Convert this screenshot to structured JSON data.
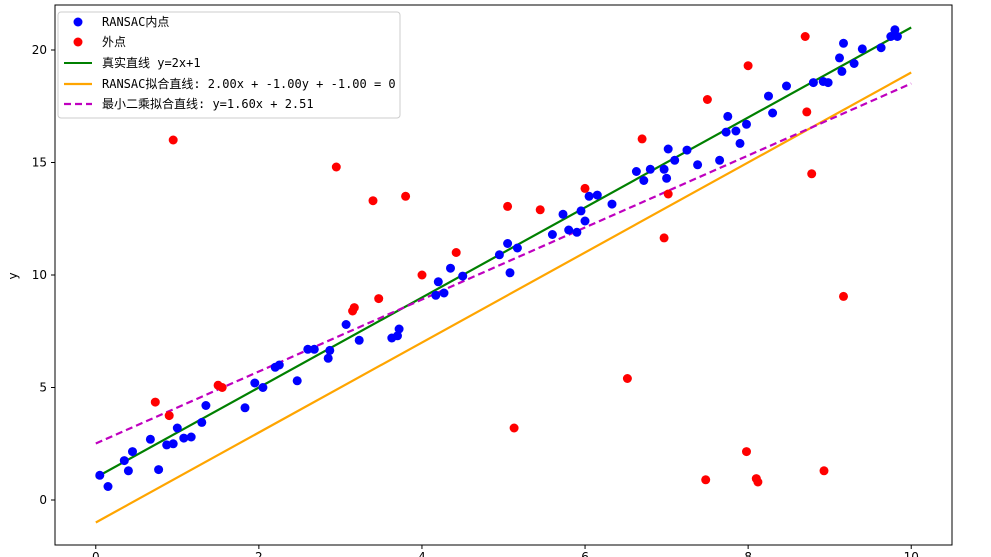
{
  "chart_data": {
    "type": "scatter",
    "title": "",
    "xlabel": "",
    "ylabel": "y",
    "xlim": [
      -0.5,
      10.5
    ],
    "ylim": [
      -2,
      22
    ],
    "xticks": [
      0,
      2,
      4,
      6,
      8,
      10
    ],
    "yticks": [
      0,
      5,
      10,
      15,
      20
    ],
    "grid": false,
    "legend_position": "top-left",
    "series": [
      {
        "name": "RANSAC内点",
        "kind": "scatter",
        "color": "#0000ff",
        "x": [
          0.05,
          0.15,
          0.35,
          0.4,
          0.45,
          0.67,
          0.77,
          0.87,
          0.95,
          1.0,
          1.08,
          1.17,
          1.3,
          1.35,
          1.83,
          1.95,
          2.05,
          2.2,
          2.25,
          2.47,
          2.6,
          2.68,
          2.85,
          2.87,
          3.07,
          3.23,
          3.63,
          3.7,
          3.72,
          4.17,
          4.2,
          4.27,
          4.35,
          4.5,
          4.95,
          5.05,
          5.08,
          5.17,
          5.6,
          5.73,
          5.8,
          5.9,
          5.95,
          6.0,
          6.05,
          6.15,
          6.33,
          6.63,
          6.72,
          6.8,
          6.97,
          7.0,
          7.02,
          7.1,
          7.25,
          7.38,
          7.65,
          7.73,
          7.75,
          7.85,
          7.9,
          7.98,
          8.25,
          8.3,
          8.47,
          8.8,
          8.92,
          8.98,
          9.12,
          9.15,
          9.17,
          9.3,
          9.4,
          9.63,
          9.75,
          9.8,
          9.83
        ],
        "y": [
          1.1,
          0.6,
          1.75,
          1.3,
          2.15,
          2.7,
          1.35,
          2.45,
          2.5,
          3.2,
          2.75,
          2.8,
          3.45,
          4.2,
          4.1,
          5.2,
          5.0,
          5.9,
          6.0,
          5.3,
          6.7,
          6.7,
          6.3,
          6.65,
          7.8,
          7.1,
          7.2,
          7.3,
          7.6,
          9.1,
          9.7,
          9.2,
          10.3,
          9.95,
          10.9,
          11.4,
          10.1,
          11.2,
          11.8,
          12.7,
          12.0,
          11.9,
          12.85,
          12.4,
          13.5,
          13.55,
          13.15,
          14.6,
          14.2,
          14.7,
          14.7,
          14.3,
          15.6,
          15.1,
          15.55,
          14.9,
          15.1,
          16.35,
          17.05,
          16.4,
          15.85,
          16.7,
          17.95,
          17.2,
          18.4,
          18.55,
          18.6,
          18.55,
          19.65,
          19.05,
          20.3,
          19.4,
          20.05,
          20.1,
          20.6,
          20.9,
          20.6
        ]
      },
      {
        "name": "外点",
        "kind": "scatter",
        "color": "#ff0000",
        "x": [
          0.73,
          0.9,
          0.95,
          1.5,
          1.55,
          2.95,
          3.15,
          3.17,
          3.4,
          3.47,
          3.8,
          4.0,
          4.42,
          5.05,
          5.13,
          5.45,
          6.0,
          6.52,
          6.7,
          6.97,
          7.02,
          7.48,
          7.5,
          7.98,
          8.0,
          8.1,
          8.12,
          8.7,
          8.72,
          8.78,
          8.93,
          9.17
        ],
        "y": [
          4.35,
          3.75,
          16.0,
          5.1,
          5.0,
          14.8,
          8.4,
          8.55,
          13.3,
          8.95,
          13.5,
          10.0,
          11.0,
          13.05,
          3.2,
          12.9,
          13.85,
          5.4,
          16.05,
          11.65,
          13.6,
          0.9,
          17.8,
          2.15,
          19.3,
          0.95,
          0.8,
          20.6,
          17.25,
          14.5,
          1.3,
          9.05
        ]
      },
      {
        "name": "真实直线 y=2x+1",
        "kind": "line",
        "color": "#008000",
        "dash": "solid",
        "x": [
          0,
          10
        ],
        "y": [
          1.0,
          21.0
        ]
      },
      {
        "name": "RANSAC拟合直线: 2.00x + -1.00y + -1.00 = 0",
        "kind": "line",
        "color": "#ffa500",
        "dash": "solid",
        "x": [
          0,
          10
        ],
        "y": [
          -1.0,
          19.0
        ]
      },
      {
        "name": "最小二乘拟合直线: y=1.60x + 2.51",
        "kind": "line",
        "color": "#bf00bf",
        "dash": "dashed",
        "x": [
          0,
          10
        ],
        "y": [
          2.51,
          18.51
        ]
      }
    ]
  }
}
